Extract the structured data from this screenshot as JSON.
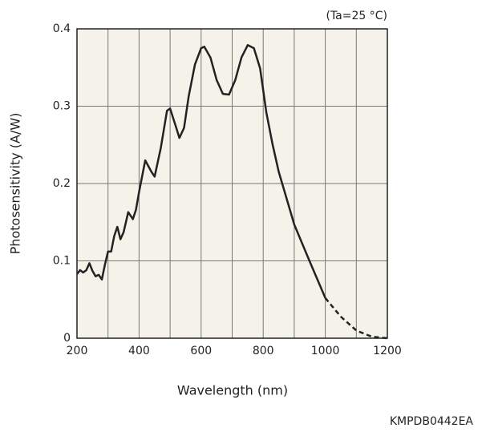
{
  "chart_data": {
    "type": "line",
    "annotation": "(Ta=25 °C)",
    "xlabel": "Wavelength (nm)",
    "ylabel": "Photosensitivity (A/W)",
    "footer": "KMPDB0442EA",
    "xlim": [
      200,
      1200
    ],
    "xticks": [
      200,
      400,
      600,
      800,
      1000,
      1200
    ],
    "xminorticks": [
      300,
      500,
      700,
      900,
      1100
    ],
    "ylim": [
      0,
      0.4
    ],
    "yticks": [
      0,
      0.1,
      0.2,
      0.3,
      0.4
    ],
    "grid": true,
    "series": [
      {
        "color": "#222222",
        "style": "solid",
        "x": [
          200,
          210,
          220,
          230,
          240,
          250,
          260,
          270,
          280,
          290,
          300,
          310,
          320,
          330,
          340,
          350,
          365,
          380,
          390,
          400,
          420,
          440,
          450,
          470,
          490,
          500,
          520,
          530,
          545,
          560,
          580,
          600,
          610,
          630,
          650,
          670,
          690,
          710,
          730,
          750,
          770,
          790,
          810,
          830,
          850,
          900,
          950,
          1000
        ],
        "values": [
          0.083,
          0.088,
          0.085,
          0.088,
          0.097,
          0.087,
          0.08,
          0.082,
          0.076,
          0.095,
          0.112,
          0.112,
          0.132,
          0.144,
          0.128,
          0.137,
          0.163,
          0.154,
          0.166,
          0.189,
          0.23,
          0.215,
          0.209,
          0.246,
          0.294,
          0.297,
          0.272,
          0.259,
          0.272,
          0.313,
          0.354,
          0.375,
          0.377,
          0.363,
          0.334,
          0.316,
          0.315,
          0.334,
          0.363,
          0.379,
          0.375,
          0.349,
          0.292,
          0.251,
          0.215,
          0.147,
          0.099,
          0.052
        ]
      },
      {
        "color": "#222222",
        "style": "dashed",
        "x": [
          1000,
          1050,
          1100,
          1150,
          1200
        ],
        "values": [
          0.052,
          0.028,
          0.01,
          0.002,
          0
        ]
      }
    ]
  }
}
